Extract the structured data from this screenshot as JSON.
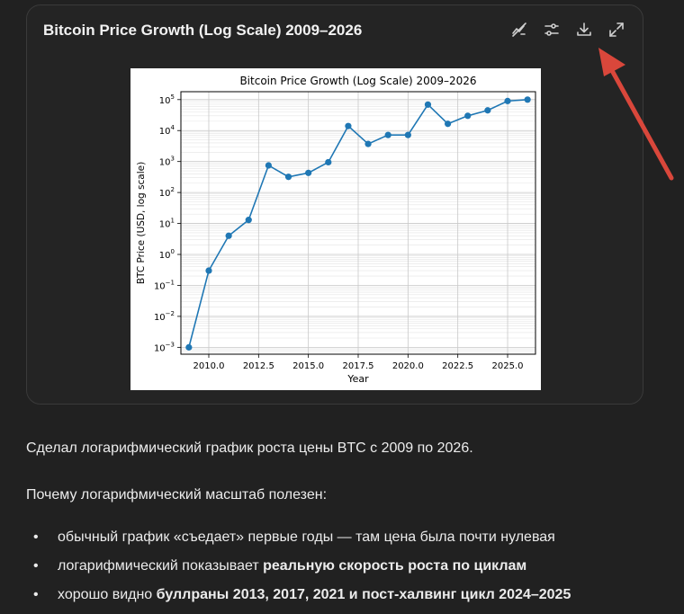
{
  "card": {
    "title": "Bitcoin Price Growth (Log Scale) 2009–2026"
  },
  "toolbar": {
    "icons": [
      "chart-type-icon",
      "sliders-icon",
      "download-icon",
      "expand-icon"
    ]
  },
  "chart_data": {
    "type": "line",
    "title": "Bitcoin Price Growth (Log Scale) 2009–2026",
    "xlabel": "Year",
    "ylabel": "BTC Price (USD, log scale)",
    "yscale": "log",
    "xlim": [
      2008.6,
      2026.4
    ],
    "ylim": [
      0.0006,
      180000
    ],
    "grid": true,
    "xticks": [
      2010.0,
      2012.5,
      2015.0,
      2017.5,
      2020.0,
      2022.5,
      2025.0
    ],
    "xtick_labels": [
      "2010.0",
      "2012.5",
      "2015.0",
      "2017.5",
      "2020.0",
      "2022.5",
      "2025.0"
    ],
    "ytick_exponents": [
      -3,
      -2,
      -1,
      0,
      1,
      2,
      3,
      4,
      5
    ],
    "series": [
      {
        "color": "#1f77b4",
        "x": [
          2009,
          2010,
          2011,
          2012,
          2013,
          2014,
          2015,
          2016,
          2017,
          2018,
          2019,
          2020,
          2021,
          2022,
          2023,
          2024,
          2025,
          2026
        ],
        "y": [
          0.001,
          0.3,
          4,
          13,
          750,
          320,
          430,
          950,
          14000,
          3700,
          7200,
          7200,
          69000,
          16500,
          30000,
          45000,
          90000,
          100000
        ]
      }
    ]
  },
  "message": {
    "intro": "Сделал логарифмический график роста цены BTC с 2009 по 2026.",
    "why": "Почему логарифмический масштаб полезен:",
    "bullets": [
      {
        "plain": "обычный график «съедает» первые годы — там цена была почти нулевая",
        "bold": ""
      },
      {
        "plain": "логарифмический показывает ",
        "bold": "реальную скорость роста по циклам"
      },
      {
        "plain": "хорошо видно ",
        "bold": "буллраны 2013, 2017, 2021 и пост-халвинг цикл 2024–2025"
      }
    ]
  },
  "colors": {
    "background": "#212121",
    "card": "#242424",
    "line": "#1f77b4",
    "arrow": "#d9473b"
  }
}
